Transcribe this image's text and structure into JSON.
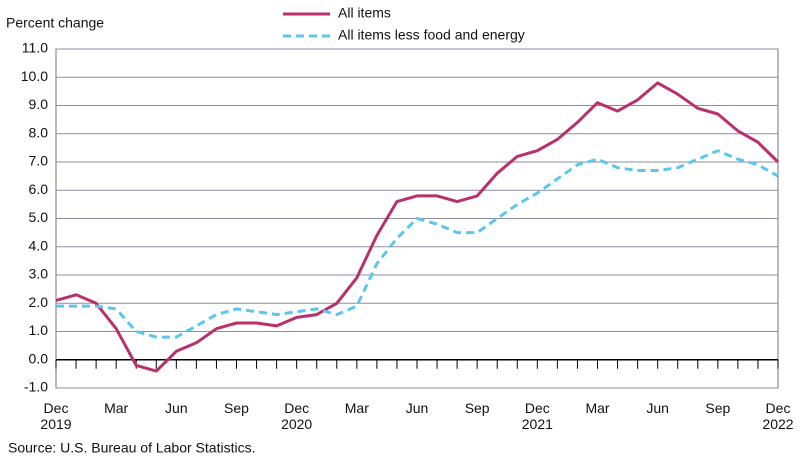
{
  "chart_data": {
    "type": "line",
    "ylabel": "Percent change",
    "source": "Source: U.S. Bureau of Labor Statistics.",
    "categories": [
      "Dec\n2019",
      null,
      null,
      "Mar",
      null,
      null,
      "Jun",
      null,
      null,
      "Sep",
      null,
      null,
      "Dec\n2020",
      null,
      null,
      "Mar",
      null,
      null,
      "Jun",
      null,
      null,
      "Sep",
      null,
      null,
      "Dec\n2021",
      null,
      null,
      "Mar",
      null,
      null,
      "Jun",
      null,
      null,
      "Sep",
      null,
      null,
      "Dec\n2022"
    ],
    "series": [
      {
        "name": "All items",
        "color": "#b8306c",
        "dash": false,
        "values": [
          2.1,
          2.3,
          2.0,
          1.1,
          -0.2,
          -0.4,
          0.3,
          0.6,
          1.1,
          1.3,
          1.3,
          1.2,
          1.5,
          1.6,
          2.0,
          2.9,
          4.4,
          5.6,
          5.8,
          5.8,
          5.6,
          5.8,
          6.6,
          7.2,
          7.4,
          7.8,
          8.4,
          9.1,
          8.8,
          9.2,
          9.8,
          9.4,
          8.9,
          8.7,
          8.1,
          7.7,
          7.0
        ]
      },
      {
        "name": "All items less food and energy",
        "color": "#5cc6ee",
        "dash": true,
        "values": [
          1.9,
          1.9,
          1.9,
          1.8,
          1.0,
          0.8,
          0.8,
          1.2,
          1.6,
          1.8,
          1.7,
          1.6,
          1.7,
          1.8,
          1.6,
          1.9,
          3.4,
          4.3,
          5.0,
          4.8,
          4.5,
          4.5,
          5.0,
          5.5,
          5.9,
          6.4,
          6.9,
          7.1,
          6.8,
          6.7,
          6.7,
          6.8,
          7.1,
          7.4,
          7.1,
          6.9,
          6.5
        ]
      }
    ],
    "ylim": [
      -1,
      11
    ],
    "yticks": [
      {
        "value": -1,
        "label": "-1.0"
      },
      {
        "value": 0,
        "label": "0.0"
      },
      {
        "value": 1,
        "label": "1.0"
      },
      {
        "value": 2,
        "label": "2.0"
      },
      {
        "value": 3,
        "label": "3.0"
      },
      {
        "value": 4,
        "label": "4.0"
      },
      {
        "value": 5,
        "label": "5.0"
      },
      {
        "value": 6,
        "label": "6.0"
      },
      {
        "value": 7,
        "label": "7.0"
      },
      {
        "value": 8,
        "label": "8.0"
      },
      {
        "value": 9,
        "label": "9.0"
      },
      {
        "value": 10,
        "label": "10.0"
      },
      {
        "value": 11,
        "label": "11.0"
      }
    ],
    "grid": true
  }
}
